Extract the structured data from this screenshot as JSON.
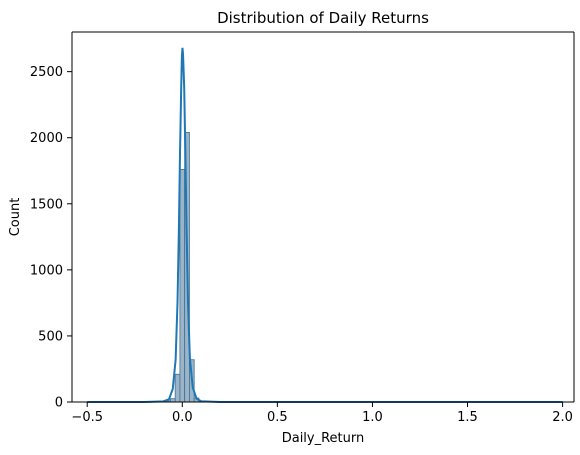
{
  "chart_data": {
    "type": "bar",
    "title": "Distribution of Daily Returns",
    "xlabel": "Daily_Return",
    "ylabel": "Count",
    "xlim": [
      -0.58,
      2.06
    ],
    "ylim": [
      0,
      2800
    ],
    "x_ticks": [
      {
        "value": -0.5,
        "label": "−0.5"
      },
      {
        "value": 0.0,
        "label": "0.0"
      },
      {
        "value": 0.5,
        "label": "0.5"
      },
      {
        "value": 1.0,
        "label": "1.0"
      },
      {
        "value": 1.5,
        "label": "1.5"
      },
      {
        "value": 2.0,
        "label": "2.0"
      }
    ],
    "y_ticks": [
      {
        "value": 0,
        "label": "0"
      },
      {
        "value": 500,
        "label": "500"
      },
      {
        "value": 1000,
        "label": "1000"
      },
      {
        "value": 1500,
        "label": "1500"
      },
      {
        "value": 2000,
        "label": "2000"
      },
      {
        "value": 2500,
        "label": "2500"
      }
    ],
    "bins": [
      {
        "x0": -0.0875,
        "x1": -0.0625,
        "count": 8
      },
      {
        "x0": -0.0625,
        "x1": -0.0375,
        "count": 25
      },
      {
        "x0": -0.0375,
        "x1": -0.0125,
        "count": 210
      },
      {
        "x0": -0.0125,
        "x1": 0.0125,
        "count": 1760
      },
      {
        "x0": 0.0125,
        "x1": 0.0375,
        "count": 2040
      },
      {
        "x0": 0.0375,
        "x1": 0.0625,
        "count": 320
      },
      {
        "x0": 0.0625,
        "x1": 0.0875,
        "count": 30
      },
      {
        "x0": 0.0875,
        "x1": 0.1125,
        "count": 5
      }
    ],
    "kde": [
      {
        "x": -0.5,
        "y": 0
      },
      {
        "x": -0.2,
        "y": 0
      },
      {
        "x": -0.1,
        "y": 5
      },
      {
        "x": -0.07,
        "y": 20
      },
      {
        "x": -0.05,
        "y": 100
      },
      {
        "x": -0.035,
        "y": 320
      },
      {
        "x": -0.025,
        "y": 760
      },
      {
        "x": -0.018,
        "y": 1300
      },
      {
        "x": -0.012,
        "y": 1880
      },
      {
        "x": -0.006,
        "y": 2360
      },
      {
        "x": -0.002,
        "y": 2620
      },
      {
        "x": 0.001,
        "y": 2680
      },
      {
        "x": 0.004,
        "y": 2630
      },
      {
        "x": 0.01,
        "y": 2380
      },
      {
        "x": 0.016,
        "y": 1900
      },
      {
        "x": 0.022,
        "y": 1340
      },
      {
        "x": 0.03,
        "y": 760
      },
      {
        "x": 0.04,
        "y": 330
      },
      {
        "x": 0.055,
        "y": 110
      },
      {
        "x": 0.075,
        "y": 25
      },
      {
        "x": 0.1,
        "y": 6
      },
      {
        "x": 0.2,
        "y": 0
      },
      {
        "x": 1.0,
        "y": 0
      },
      {
        "x": 2.0,
        "y": 0
      }
    ],
    "colors": {
      "bar_fill": "#9bb4c8",
      "bar_stroke": "#3f6f93",
      "kde_line": "#1f77b4",
      "axis": "#000000"
    },
    "grid": false,
    "legend": "none"
  }
}
